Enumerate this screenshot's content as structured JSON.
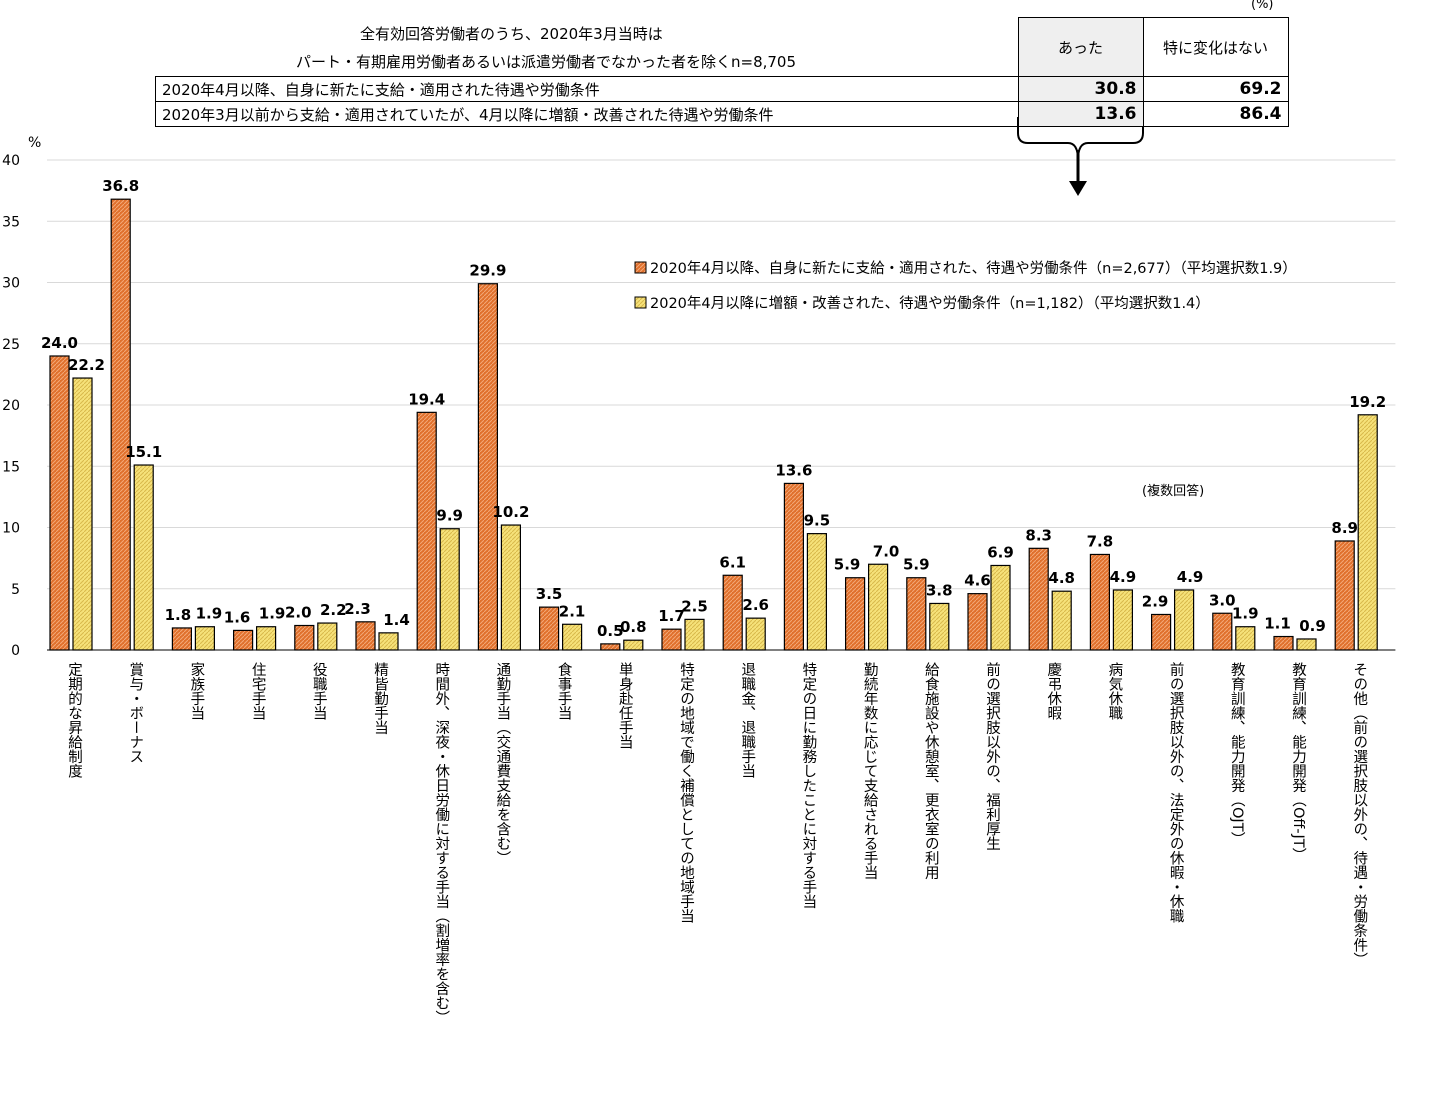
{
  "summary": {
    "title_line1": "全有効回答労働者のうち、2020年3月当時は",
    "title_line2": "パート・有期雇用労働者あるいは派遣労働者でなかった者を除くn=8,705",
    "unit": "(%)",
    "col_headers": [
      "あった",
      "特に変化はない"
    ],
    "rows": [
      {
        "label": "2020年4月以降、自身に新たに支給・適用された待遇や労働条件",
        "values": [
          "30.8",
          "69.2"
        ]
      },
      {
        "label": "2020年3月以前から支給・適用されていたが、4月以降に増額・改善された待遇や労働条件",
        "values": [
          "13.6",
          "86.4"
        ]
      }
    ]
  },
  "colors": {
    "series1": "#e0702c",
    "series2": "#f6e27a",
    "grid": "#d9d9d9"
  },
  "chart_data": {
    "type": "bar",
    "ylabel": "%",
    "ylim": [
      0,
      40
    ],
    "yticks": [
      0,
      5,
      10,
      15,
      20,
      25,
      30,
      35,
      40
    ],
    "note": "(複数回答)",
    "legend_position": "upper-right",
    "categories": [
      "定期的な昇給制度",
      "賞与・ボーナス",
      "家族手当",
      "住宅手当",
      "役職手当",
      "精皆勤手当",
      "時間外、深夜・休日労働に対する手当（割増率を含む）",
      "通勤手当（交通費支給を含む）",
      "食事手当",
      "単身赴任手当",
      "特定の地域で働く補償としての地域手当",
      "退職金、退職手当",
      "特定の日に勤務したことに対する手当",
      "勤続年数に応じて支給される手当",
      "給食施設や休憩室、更衣室の利用",
      "前の選択肢以外の、福利厚生",
      "慶弔休暇",
      "病気休職",
      "前の選択肢以外の、法定外の休暇・休職",
      "教育訓練、能力開発（OJT）",
      "教育訓練、能力開発（Off-JT）",
      "その他（前の選択肢以外の、待遇・労働条件）"
    ],
    "series": [
      {
        "name": "2020年4月以降、自身に新たに支給・適用された、待遇や労働条件（n=2,677）（平均選択数1.9）",
        "values": [
          24.0,
          36.8,
          1.8,
          1.6,
          2.0,
          2.3,
          19.4,
          29.9,
          3.5,
          0.5,
          1.7,
          6.1,
          13.6,
          5.9,
          5.9,
          4.6,
          8.3,
          7.8,
          2.9,
          3.0,
          1.1,
          8.9
        ]
      },
      {
        "name": "2020年4月以降に増額・改善された、待遇や労働条件（n=1,182）（平均選択数1.4）",
        "values": [
          22.2,
          15.1,
          1.9,
          1.9,
          2.2,
          1.4,
          9.9,
          10.2,
          2.1,
          0.8,
          2.5,
          2.6,
          9.5,
          7.0,
          3.8,
          6.9,
          4.8,
          4.9,
          4.9,
          1.9,
          0.9,
          19.2
        ]
      }
    ]
  }
}
